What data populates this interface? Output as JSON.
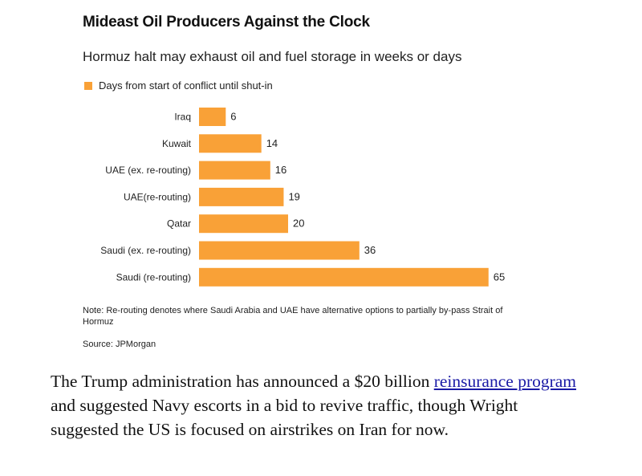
{
  "chart_data": {
    "type": "bar",
    "orientation": "horizontal",
    "title": "Mideast Oil Producers Against the Clock",
    "subtitle": "Hormuz halt may exhaust oil and fuel storage in weeks or days",
    "categories": [
      "Iraq",
      "Kuwait",
      "UAE (ex. re-routing)",
      "UAE(re-routing)",
      "Qatar",
      "Saudi (ex. re-routing)",
      "Saudi (re-routing)"
    ],
    "series": [
      {
        "name": "Days from start of conflict until shut-in",
        "values": [
          6,
          14,
          16,
          19,
          20,
          36,
          65
        ],
        "color": "#f9a137"
      }
    ],
    "value_labels": [
      "6",
      "14",
      "16",
      "19",
      "20",
      "36",
      "65"
    ],
    "legend_position": "top-left",
    "grid": false,
    "note": "Note: Re-routing denotes where Saudi Arabia and UAE have alternative options to partially by-pass Strait of Hormuz",
    "source": "Source: JPMorgan"
  },
  "article": {
    "before_link": "The Trump administration has announced a $20 billion ",
    "link_text": "reinsurance program",
    "after_link": " and suggested Navy escorts in a bid to revive traffic, though Wright suggested the US is focused on airstrikes on Iran for now."
  }
}
